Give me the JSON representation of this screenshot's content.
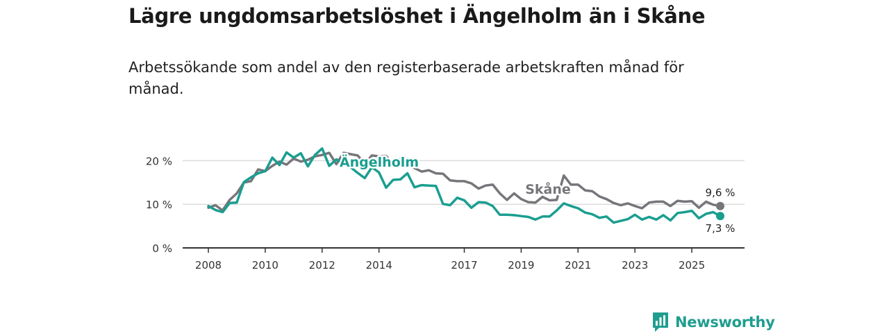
{
  "header": {
    "title": "Lägre ungdomsarbetslöshet i Ängelholm än i Skåne",
    "subtitle": "Arbetssökande som andel av den registerbaserade arbetskraften månad för månad."
  },
  "brand": {
    "name": "Newsworthy",
    "icon": "bar-chart-logo-icon"
  },
  "colors": {
    "angelholm": "#1a9e90",
    "skane": "#77757a",
    "grid": "#dcdcdc",
    "axis": "#333333"
  },
  "chart_data": {
    "type": "line",
    "title": "Lägre ungdomsarbetslöshet i Ängelholm än i Skåne",
    "xlabel": "",
    "ylabel": "",
    "xlim": [
      2008,
      2026.4
    ],
    "ylim": [
      0,
      25
    ],
    "grid": true,
    "yticks": [
      0,
      10,
      20
    ],
    "ytick_labels": [
      "0 %",
      "10 %",
      "20 %"
    ],
    "xticks": [
      2008,
      2010,
      2012,
      2014,
      2017,
      2019,
      2021,
      2023,
      2025
    ],
    "xtick_labels": [
      "2008",
      "2010",
      "2012",
      "2014",
      "2017",
      "2019",
      "2021",
      "2023",
      "2025"
    ],
    "series": [
      {
        "name": "Skåne",
        "label": "Skåne",
        "end_label": "9,6 %",
        "end_value": 9.6,
        "x": [
          2008.0,
          2008.25,
          2008.5,
          2008.75,
          2009.0,
          2009.25,
          2009.5,
          2009.75,
          2010.0,
          2010.25,
          2010.5,
          2010.75,
          2011.0,
          2011.25,
          2011.5,
          2011.75,
          2012.0,
          2012.25,
          2012.5,
          2012.75,
          2013.0,
          2013.25,
          2013.5,
          2013.75,
          2014.0,
          2014.25,
          2014.5,
          2014.75,
          2015.0,
          2015.25,
          2015.5,
          2015.75,
          2016.0,
          2016.25,
          2016.5,
          2016.75,
          2017.0,
          2017.25,
          2017.5,
          2017.75,
          2018.0,
          2018.25,
          2018.5,
          2018.75,
          2019.0,
          2019.25,
          2019.5,
          2019.75,
          2020.0,
          2020.25,
          2020.5,
          2020.75,
          2021.0,
          2021.25,
          2021.5,
          2021.75,
          2022.0,
          2022.25,
          2022.5,
          2022.75,
          2023.0,
          2023.25,
          2023.5,
          2023.75,
          2024.0,
          2024.25,
          2024.5,
          2024.75,
          2025.0,
          2025.25,
          2025.5,
          2025.75,
          2026.0
        ],
        "values": [
          9.2,
          9.8,
          8.6,
          11.0,
          12.5,
          15.0,
          15.3,
          18.0,
          17.6,
          18.8,
          19.8,
          19.1,
          20.5,
          19.8,
          20.2,
          21.0,
          21.3,
          21.8,
          19.2,
          21.8,
          21.5,
          21.2,
          19.3,
          21.2,
          21.0,
          21.1,
          19.3,
          20.4,
          19.2,
          18.3,
          17.5,
          17.8,
          17.1,
          17.0,
          15.5,
          15.3,
          15.3,
          14.8,
          13.6,
          14.3,
          14.5,
          12.5,
          11.0,
          12.5,
          11.2,
          10.5,
          10.4,
          11.7,
          10.9,
          11.0,
          16.6,
          14.5,
          14.5,
          13.2,
          13.0,
          11.8,
          11.2,
          10.3,
          9.8,
          10.2,
          9.6,
          9.1,
          10.4,
          10.6,
          10.6,
          9.6,
          10.8,
          10.6,
          10.7,
          9.2,
          10.6,
          9.9,
          9.6
        ]
      },
      {
        "name": "Ängelholm",
        "label": "Ängelholm",
        "end_label": "7,3 %",
        "end_value": 7.3,
        "x": [
          2008.0,
          2008.25,
          2008.5,
          2008.75,
          2009.0,
          2009.25,
          2009.5,
          2009.75,
          2010.0,
          2010.25,
          2010.5,
          2010.75,
          2011.0,
          2011.25,
          2011.5,
          2011.75,
          2012.0,
          2012.25,
          2012.5,
          2012.75,
          2013.0,
          2013.25,
          2013.5,
          2013.75,
          2014.0,
          2014.25,
          2014.5,
          2014.75,
          2015.0,
          2015.25,
          2015.5,
          2015.75,
          2016.0,
          2016.25,
          2016.5,
          2016.75,
          2017.0,
          2017.25,
          2017.5,
          2017.75,
          2018.0,
          2018.25,
          2018.5,
          2018.75,
          2019.0,
          2019.25,
          2019.5,
          2019.75,
          2020.0,
          2020.25,
          2020.5,
          2020.75,
          2021.0,
          2021.25,
          2021.5,
          2021.75,
          2022.0,
          2022.25,
          2022.5,
          2022.75,
          2023.0,
          2023.25,
          2023.5,
          2023.75,
          2024.0,
          2024.25,
          2024.5,
          2024.75,
          2025.0,
          2025.25,
          2025.5,
          2025.75,
          2026.0
        ],
        "values": [
          9.6,
          8.7,
          8.2,
          10.3,
          10.4,
          15.1,
          16.2,
          17.1,
          17.6,
          20.7,
          19.0,
          21.9,
          20.7,
          21.7,
          18.7,
          21.3,
          22.8,
          18.8,
          20.3,
          19.4,
          18.5,
          17.2,
          16.0,
          18.5,
          17.3,
          13.8,
          15.6,
          15.7,
          17.1,
          13.9,
          14.4,
          14.3,
          14.2,
          10.1,
          9.8,
          11.5,
          10.9,
          9.2,
          10.5,
          10.4,
          9.6,
          7.6,
          7.6,
          7.5,
          7.3,
          7.1,
          6.5,
          7.2,
          7.2,
          8.6,
          10.2,
          9.6,
          9.1,
          8.1,
          7.7,
          6.9,
          7.2,
          5.8,
          6.2,
          6.6,
          7.6,
          6.5,
          7.1,
          6.5,
          7.5,
          6.3,
          8.0,
          8.2,
          8.5,
          6.8,
          7.8,
          8.2,
          7.3
        ]
      }
    ]
  }
}
